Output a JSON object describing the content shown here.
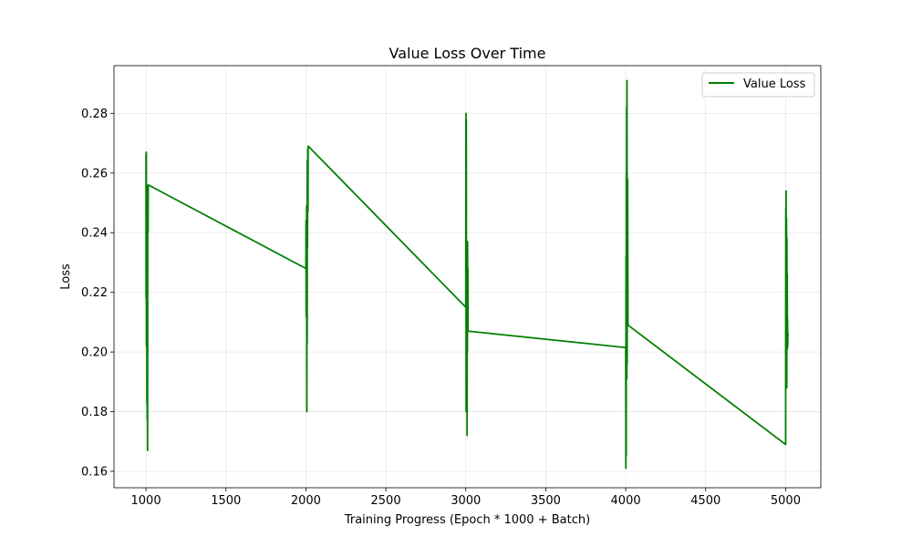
{
  "chart_data": {
    "type": "line",
    "title": "Value Loss Over Time",
    "xlabel": "Training Progress (Epoch * 1000 + Batch)",
    "ylabel": "Loss",
    "xlim": [
      800,
      5220
    ],
    "ylim": [
      0.1545,
      0.296
    ],
    "x_ticks": [
      1000,
      1500,
      2000,
      2500,
      3000,
      3500,
      4000,
      4500,
      5000
    ],
    "x_tick_labels": [
      "1000",
      "1500",
      "2000",
      "2500",
      "3000",
      "3500",
      "4000",
      "4500",
      "5000"
    ],
    "y_ticks": [
      0.16,
      0.18,
      0.2,
      0.22,
      0.24,
      0.26,
      0.28
    ],
    "y_tick_labels": [
      "0.16",
      "0.18",
      "0.20",
      "0.22",
      "0.24",
      "0.26",
      "0.28"
    ],
    "grid": true,
    "legend": {
      "position": "top-right"
    },
    "series": [
      {
        "name": "Value Loss",
        "color": "#008000",
        "x": [
          1000,
          1001,
          1002,
          1003,
          1004,
          1005,
          1006,
          1007,
          1008,
          1009,
          1010,
          1011,
          1012,
          1013,
          1014,
          1015,
          2000,
          2001,
          2002,
          2003,
          2004,
          2005,
          2006,
          2007,
          2008,
          2009,
          2010,
          2011,
          2012,
          2013,
          2014,
          2015,
          3000,
          3001,
          3002,
          3003,
          3004,
          3005,
          3006,
          3007,
          3008,
          3009,
          3010,
          3011,
          3012,
          3013,
          3014,
          3015,
          4000,
          4001,
          4002,
          4003,
          4004,
          4005,
          4006,
          4007,
          4008,
          4009,
          4010,
          4011,
          4012,
          4013,
          4014,
          4015,
          5000,
          5001,
          5002,
          5003,
          5004,
          5005,
          5006,
          5007,
          5008,
          5009,
          5010,
          5011,
          5012,
          5013,
          5014,
          5015
        ],
        "y": [
          0.266,
          0.218,
          0.267,
          0.202,
          0.245,
          0.256,
          0.183,
          0.25,
          0.177,
          0.234,
          0.167,
          0.248,
          0.255,
          0.24,
          0.256,
          0.256,
          0.228,
          0.244,
          0.212,
          0.24,
          0.227,
          0.249,
          0.18,
          0.246,
          0.203,
          0.264,
          0.235,
          0.252,
          0.268,
          0.247,
          0.269,
          0.269,
          0.215,
          0.28,
          0.18,
          0.278,
          0.214,
          0.226,
          0.197,
          0.237,
          0.172,
          0.23,
          0.2,
          0.237,
          0.21,
          0.228,
          0.207,
          0.207,
          0.2015,
          0.161,
          0.232,
          0.165,
          0.26,
          0.201,
          0.282,
          0.191,
          0.291,
          0.196,
          0.239,
          0.212,
          0.258,
          0.236,
          0.21,
          0.209,
          0.169,
          0.248,
          0.19,
          0.254,
          0.2,
          0.245,
          0.237,
          0.188,
          0.238,
          0.21,
          0.226,
          0.201,
          0.211,
          0.202,
          0.206,
          0.206
        ]
      }
    ]
  }
}
